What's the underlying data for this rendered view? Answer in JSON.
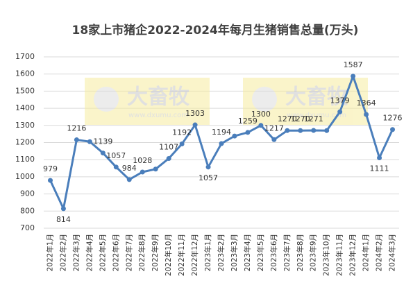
{
  "chart_data": {
    "type": "line",
    "title": "18家上市猪企2022-2024年每月生猪销售总量(万头)",
    "categories": [
      "2022年1月",
      "2022年2月",
      "2022年3月",
      "2022年4月",
      "2022年5月",
      "2022年6月",
      "2022年7月",
      "2022年8月",
      "2022年9月",
      "2022年10月",
      "2022年11月",
      "2022年12月",
      "2023年1月",
      "2023年2月",
      "2023年3月",
      "2023年4月",
      "2023年5月",
      "2023年6月",
      "2023年7月",
      "2023年8月",
      "2023年9月",
      "2023年10月",
      "2023年11月",
      "2023年12月",
      "2024年1月",
      "2024年2月",
      "2024年3月"
    ],
    "values": [
      979,
      814,
      1216,
      1205,
      1139,
      1057,
      984,
      1028,
      1045,
      1107,
      1192,
      1303,
      1057,
      1194,
      1238,
      1259,
      1300,
      1217,
      1270,
      1270,
      1271,
      1270,
      1379,
      1587,
      1364,
      1111,
      1276
    ],
    "value_labels": [
      "979",
      "814",
      "1216",
      null,
      "1139",
      "1057",
      "984",
      "1028",
      null,
      "1107",
      "1192",
      "1303",
      "1057",
      "1194",
      null,
      "1259",
      "1300",
      "1217",
      "1270",
      "1270",
      "1271",
      null,
      "1379",
      "1587",
      "1364",
      "1111",
      "1276"
    ],
    "color": "#4a7ebb",
    "ylim": [
      700,
      1700
    ],
    "yticks": [
      700,
      800,
      900,
      1000,
      1100,
      1200,
      1300,
      1400,
      1500,
      1600,
      1700
    ],
    "grid": true,
    "watermark": [
      "大畜牧",
      "www.dxumu.com"
    ]
  }
}
